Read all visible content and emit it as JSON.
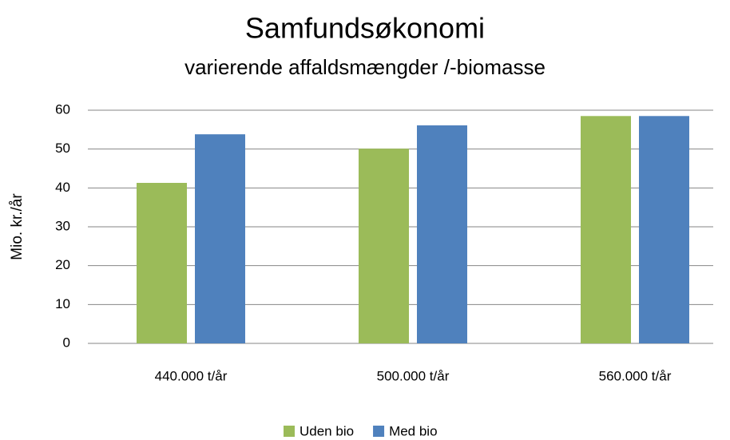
{
  "chart_data": {
    "type": "bar",
    "title": "Samfundsøkonomi",
    "subtitle": "varierende affaldsmængder /-biomasse",
    "y_label": "Mio. kr./år",
    "categories": [
      "440.000 t/år",
      "500.000 t/år",
      "560.000 t/år"
    ],
    "series": [
      {
        "name": "Uden bio",
        "color": "#9bbb59",
        "values": [
          41.3,
          50.1,
          58.5
        ]
      },
      {
        "name": "Med bio",
        "color": "#4f81bd",
        "values": [
          53.8,
          56.1,
          58.5
        ]
      }
    ],
    "ylim": [
      0,
      60
    ],
    "yticks": [
      0,
      10,
      20,
      30,
      40,
      50,
      60
    ],
    "grid": true,
    "legend": "bottom"
  }
}
